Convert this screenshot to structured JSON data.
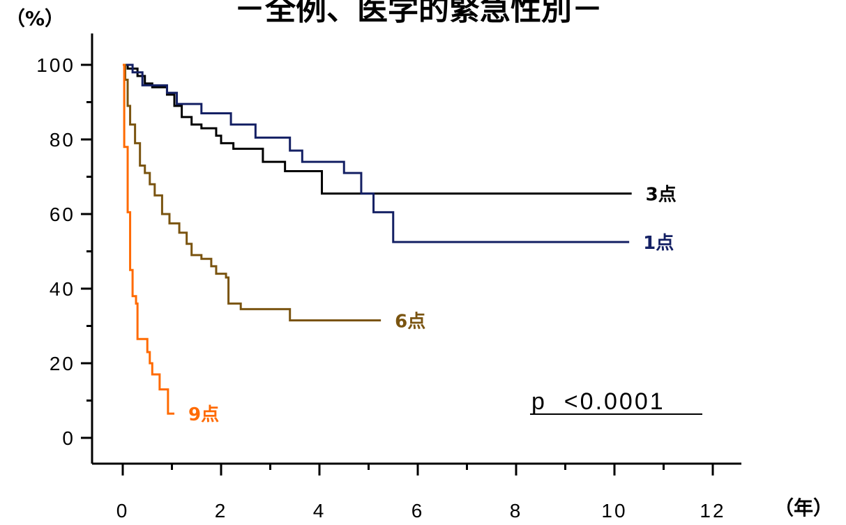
{
  "chart_data": {
    "type": "line",
    "step": true,
    "title": "－全例、医学的緊急性別－",
    "ylabel": "（%）",
    "xlabel": "（年）",
    "xlim": [
      0,
      12
    ],
    "ylim": [
      0,
      100
    ],
    "x_ticks": [
      0,
      2,
      4,
      6,
      8,
      10,
      12
    ],
    "y_ticks": [
      0,
      20,
      40,
      60,
      80,
      100
    ],
    "annotation": "p  <0.0001",
    "series": [
      {
        "name": "3点",
        "color": "#000000",
        "points": [
          [
            0,
            100
          ],
          [
            0.1,
            99
          ],
          [
            0.3,
            97
          ],
          [
            0.45,
            95
          ],
          [
            0.6,
            94
          ],
          [
            0.9,
            92
          ],
          [
            1.05,
            89
          ],
          [
            1.2,
            86
          ],
          [
            1.4,
            84
          ],
          [
            1.6,
            83
          ],
          [
            1.9,
            81
          ],
          [
            2.0,
            79
          ],
          [
            2.25,
            77.5
          ],
          [
            2.85,
            74
          ],
          [
            3.3,
            71.5
          ],
          [
            4.05,
            65.5
          ],
          [
            10.35,
            65.5
          ]
        ]
      },
      {
        "name": "1点",
        "color": "#142064",
        "points": [
          [
            0,
            100
          ],
          [
            0.2,
            98
          ],
          [
            0.4,
            94.5
          ],
          [
            0.9,
            92.5
          ],
          [
            1.1,
            89.5
          ],
          [
            1.6,
            87
          ],
          [
            2.2,
            84
          ],
          [
            2.7,
            80.5
          ],
          [
            3.4,
            77
          ],
          [
            3.65,
            74
          ],
          [
            4.5,
            71
          ],
          [
            4.85,
            65.5
          ],
          [
            5.1,
            60.5
          ],
          [
            5.5,
            52.5
          ],
          [
            10.3,
            52.5
          ]
        ]
      },
      {
        "name": "6点",
        "color": "#7A5410",
        "points": [
          [
            0,
            100
          ],
          [
            0.05,
            96
          ],
          [
            0.1,
            89
          ],
          [
            0.15,
            84
          ],
          [
            0.25,
            79
          ],
          [
            0.35,
            73
          ],
          [
            0.45,
            71
          ],
          [
            0.55,
            68
          ],
          [
            0.65,
            65
          ],
          [
            0.8,
            60
          ],
          [
            0.95,
            57.5
          ],
          [
            1.15,
            55
          ],
          [
            1.3,
            52
          ],
          [
            1.4,
            49
          ],
          [
            1.6,
            48
          ],
          [
            1.8,
            46
          ],
          [
            1.9,
            44
          ],
          [
            2.1,
            43
          ],
          [
            2.15,
            36
          ],
          [
            2.4,
            34.5
          ],
          [
            3.4,
            31.5
          ],
          [
            5.25,
            31.5
          ]
        ]
      },
      {
        "name": "9点",
        "color": "#FF6A00",
        "points": [
          [
            0,
            100
          ],
          [
            0.03,
            78
          ],
          [
            0.1,
            60.5
          ],
          [
            0.15,
            45
          ],
          [
            0.2,
            38
          ],
          [
            0.27,
            36
          ],
          [
            0.3,
            26.5
          ],
          [
            0.5,
            23
          ],
          [
            0.55,
            20
          ],
          [
            0.6,
            17
          ],
          [
            0.75,
            13
          ],
          [
            0.92,
            6.5
          ],
          [
            1.05,
            6.5
          ]
        ]
      }
    ],
    "labels": [
      {
        "series": 0,
        "text": "3点"
      },
      {
        "series": 1,
        "text": "1点"
      },
      {
        "series": 2,
        "text": "6点"
      },
      {
        "series": 3,
        "text": "9点"
      }
    ]
  }
}
